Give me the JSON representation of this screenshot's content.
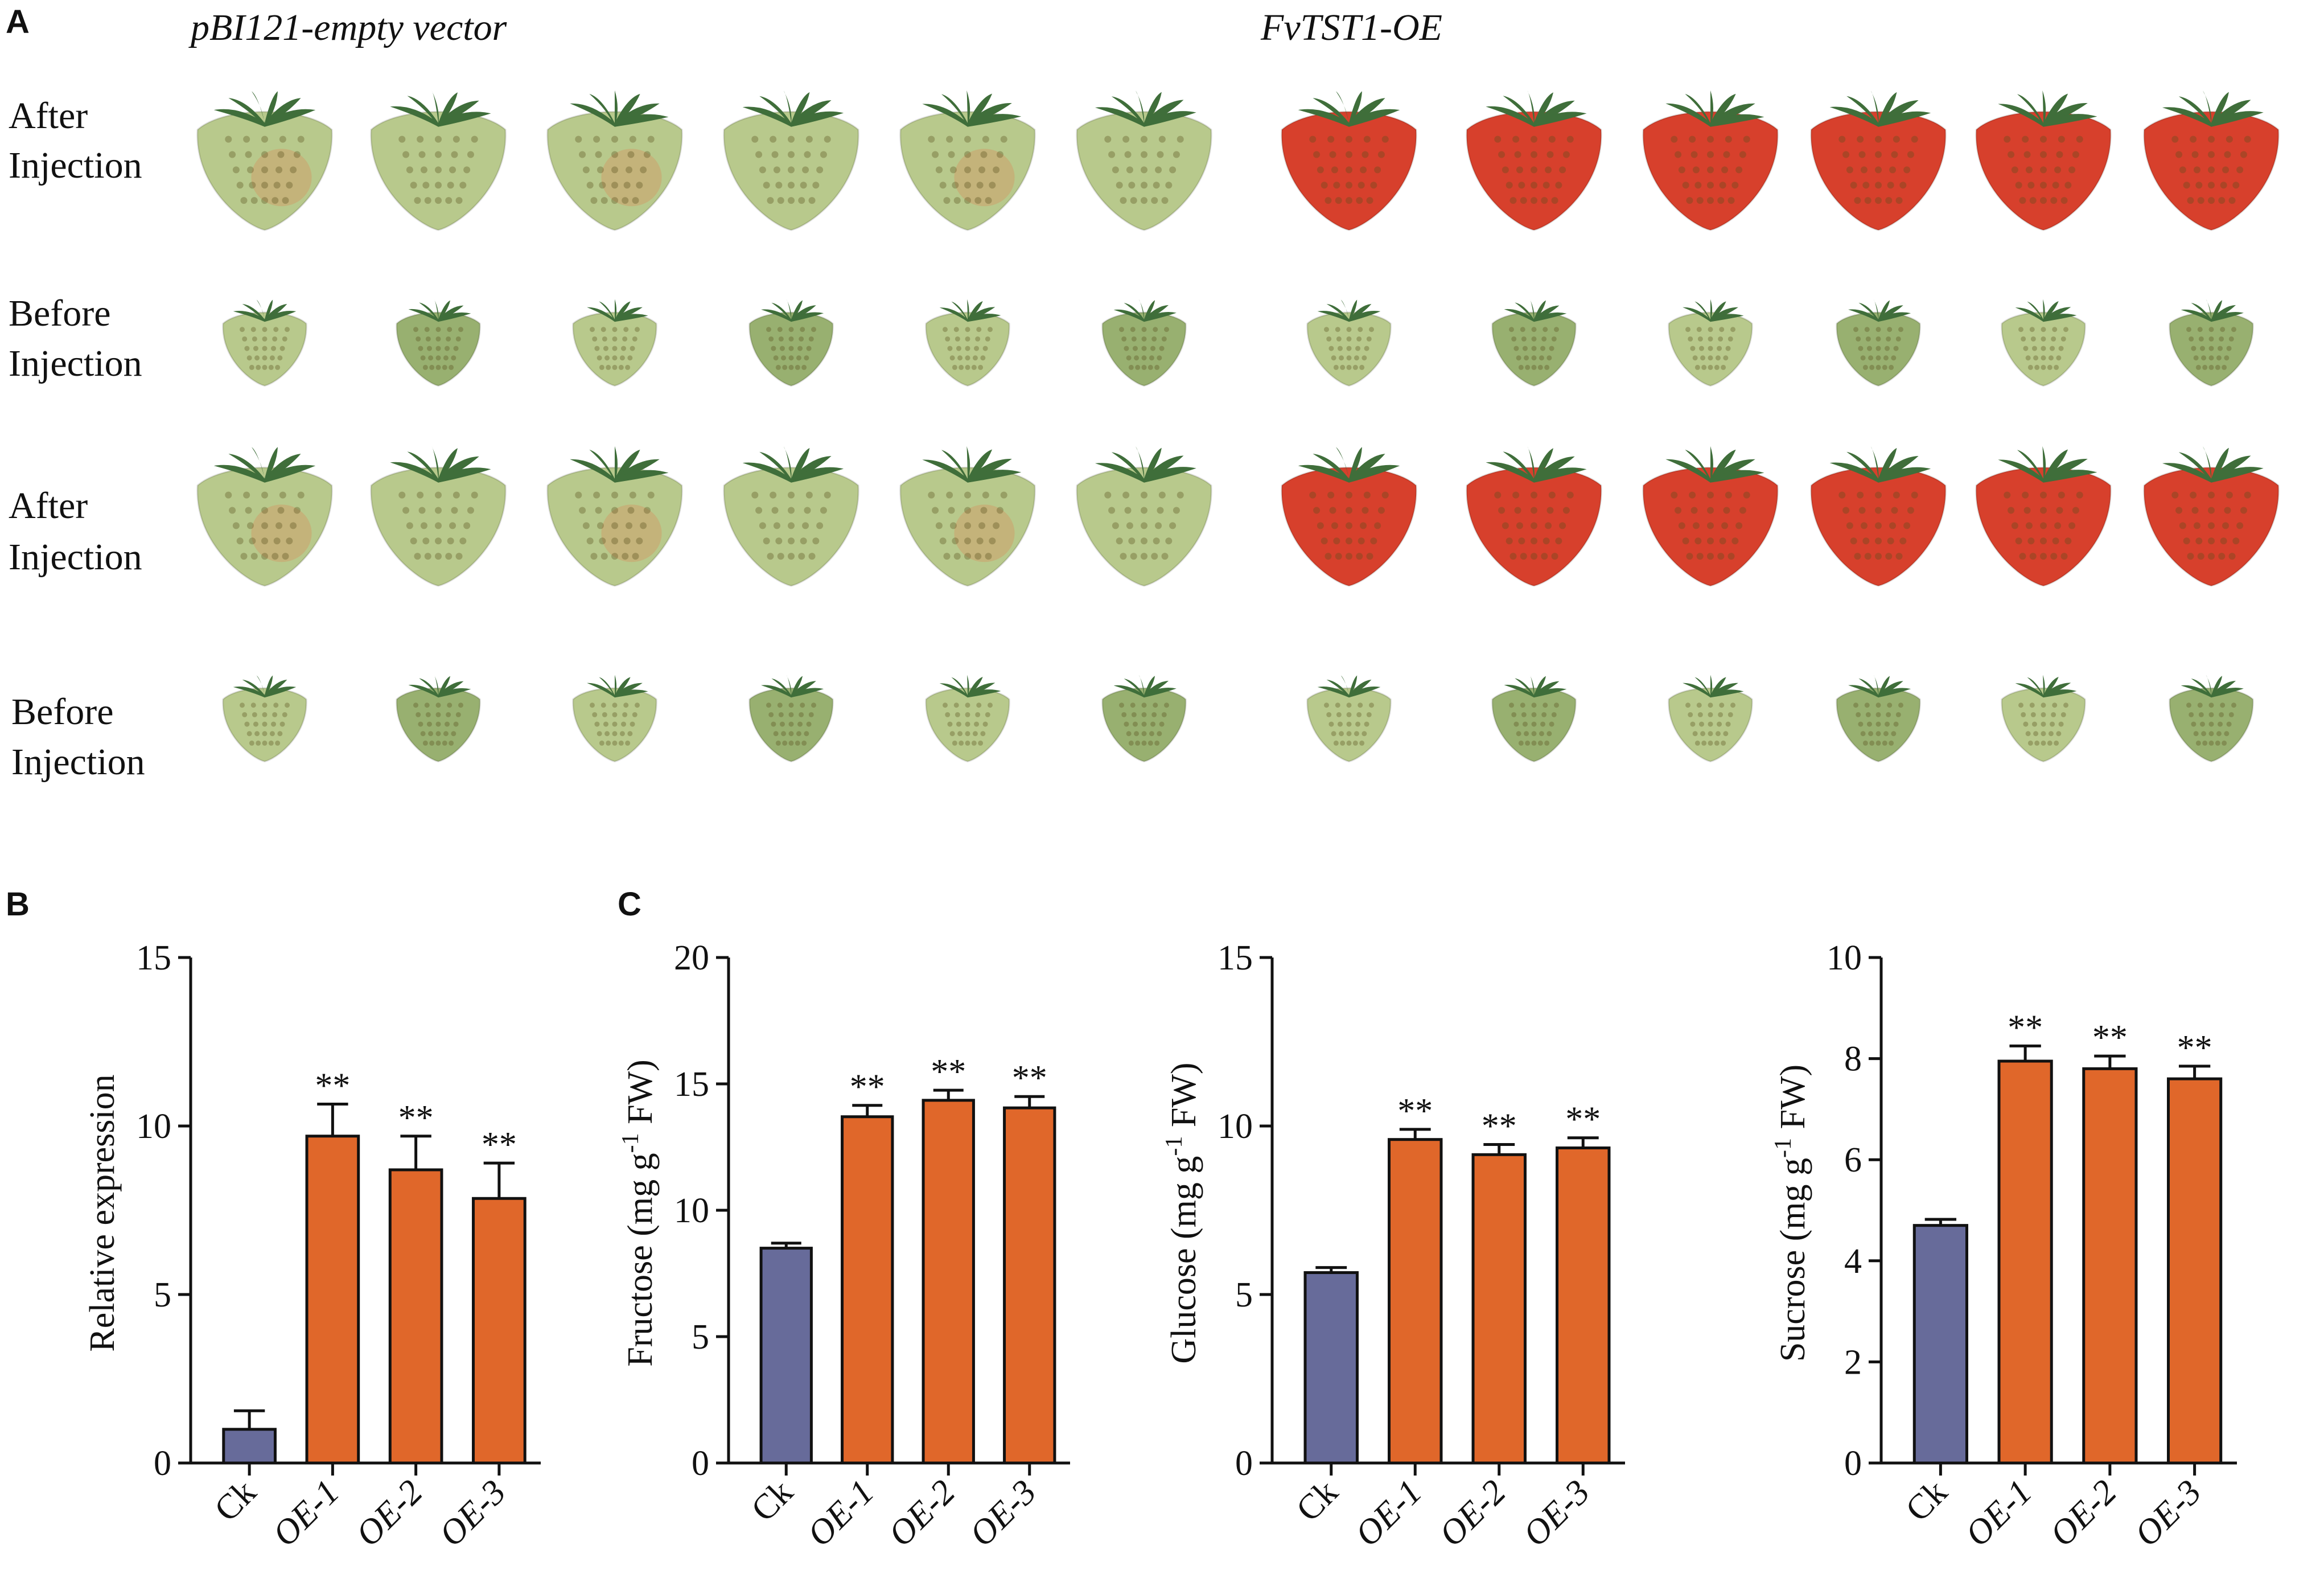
{
  "panels": {
    "a": "A",
    "b": "B",
    "c": "C"
  },
  "photos": {
    "groups": [
      {
        "title": "pBI121-empty vector",
        "type": "control"
      },
      {
        "title": "FvTST1-OE",
        "type": "oe"
      }
    ],
    "rows": [
      {
        "label": [
          "After",
          "Injection"
        ],
        "stage": "after"
      },
      {
        "label": [
          "Before",
          "Injection"
        ],
        "stage": "before"
      },
      {
        "label": [
          "After",
          "Injection"
        ],
        "stage": "after"
      },
      {
        "label": [
          "Before",
          "Injection"
        ],
        "stage": "before"
      }
    ],
    "fruit_per_group": 6
  },
  "colors": {
    "ck": "#676b9a",
    "oe": "#e0672a",
    "axis": "#111111",
    "green_fruit": "#b8c98c",
    "green_fruit_dark": "#98b070",
    "red_fruit": "#d7402c",
    "leaf": "#3f6e3a",
    "blush": "#d98a5a"
  },
  "chart_data": [
    {
      "type": "bar",
      "panel": "B",
      "categories": [
        "Ck",
        "OE-1",
        "OE-2",
        "OE-3"
      ],
      "values": [
        1.0,
        9.7,
        8.7,
        7.85
      ],
      "errors": [
        0.55,
        0.95,
        1.0,
        1.05
      ],
      "significance": [
        "",
        "**",
        "**",
        "**"
      ],
      "xlabel": "",
      "ylabel": "Relative expression",
      "ylim": [
        0,
        15
      ],
      "yticks": [
        0,
        5,
        10,
        15
      ]
    },
    {
      "type": "bar",
      "panel": "C",
      "categories": [
        "Ck",
        "OE-1",
        "OE-2",
        "OE-3"
      ],
      "values": [
        8.5,
        13.7,
        14.35,
        14.05
      ],
      "errors": [
        0.2,
        0.45,
        0.4,
        0.45
      ],
      "significance": [
        "",
        "**",
        "**",
        "**"
      ],
      "xlabel": "",
      "ylabel": "Fructose (mg g-1 FW)",
      "ylim": [
        0,
        20
      ],
      "yticks": [
        0,
        5,
        10,
        15,
        20
      ]
    },
    {
      "type": "bar",
      "panel": "C",
      "categories": [
        "Ck",
        "OE-1",
        "OE-2",
        "OE-3"
      ],
      "values": [
        5.65,
        9.6,
        9.15,
        9.35
      ],
      "errors": [
        0.15,
        0.3,
        0.3,
        0.3
      ],
      "significance": [
        "",
        "**",
        "**",
        "**"
      ],
      "xlabel": "",
      "ylabel": "Glucose (mg g-1 FW)",
      "ylim": [
        0,
        15
      ],
      "yticks": [
        0,
        5,
        10,
        15
      ]
    },
    {
      "type": "bar",
      "panel": "C",
      "categories": [
        "Ck",
        "OE-1",
        "OE-2",
        "OE-3"
      ],
      "values": [
        4.7,
        7.95,
        7.8,
        7.6
      ],
      "errors": [
        0.12,
        0.3,
        0.25,
        0.25
      ],
      "significance": [
        "",
        "**",
        "**",
        "**"
      ],
      "xlabel": "",
      "ylabel": "Sucrose (mg g-1 FW)",
      "ylim": [
        0,
        10
      ],
      "yticks": [
        0,
        2,
        4,
        6,
        8,
        10
      ]
    }
  ]
}
